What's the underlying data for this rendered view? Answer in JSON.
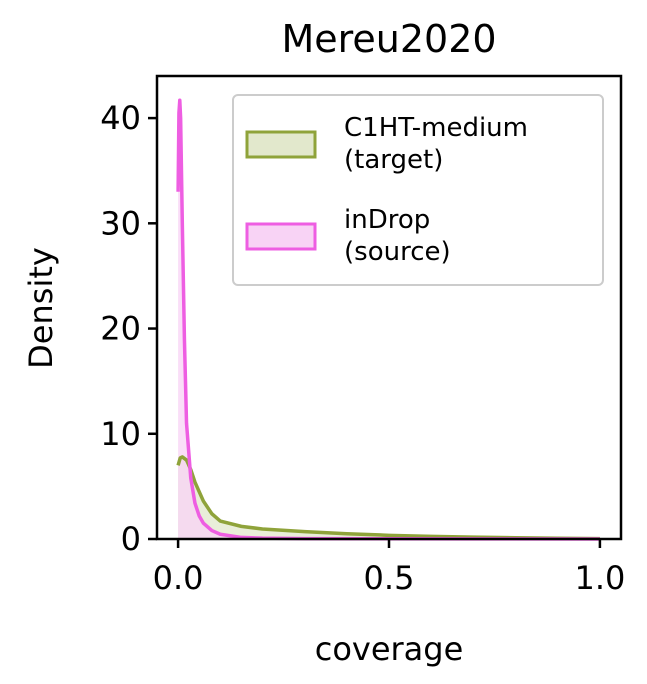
{
  "chart_data": {
    "type": "area",
    "title": "Mereu2020",
    "xlabel": "coverage",
    "ylabel": "Density",
    "xlim": [
      -0.05,
      1.05
    ],
    "ylim": [
      0,
      44
    ],
    "x_ticks": [
      0.0,
      0.5,
      1.0
    ],
    "x_tick_labels": [
      "0.0",
      "0.5",
      "1.0"
    ],
    "y_ticks": [
      0,
      10,
      20,
      30,
      40
    ],
    "y_tick_labels": [
      "0",
      "10",
      "20",
      "30",
      "40"
    ],
    "grid": false,
    "legend_position": "top-right",
    "series": [
      {
        "name": "C1HT-medium (target)",
        "legend_lines": [
          "C1HT-medium",
          "(target)"
        ],
        "color": "#8fa33a",
        "fill": "#e2e8cc",
        "points": [
          [
            0.0,
            0
          ],
          [
            0.0,
            7.0
          ],
          [
            0.005,
            7.7
          ],
          [
            0.01,
            7.8
          ],
          [
            0.02,
            7.5
          ],
          [
            0.03,
            6.6
          ],
          [
            0.04,
            5.4
          ],
          [
            0.06,
            3.6
          ],
          [
            0.08,
            2.4
          ],
          [
            0.1,
            1.7
          ],
          [
            0.15,
            1.2
          ],
          [
            0.2,
            0.95
          ],
          [
            0.3,
            0.7
          ],
          [
            0.4,
            0.5
          ],
          [
            0.5,
            0.35
          ],
          [
            0.6,
            0.25
          ],
          [
            0.7,
            0.18
          ],
          [
            0.8,
            0.12
          ],
          [
            0.9,
            0.07
          ],
          [
            1.0,
            0.03
          ],
          [
            1.0,
            0
          ]
        ]
      },
      {
        "name": "inDrop (source)",
        "legend_lines": [
          "inDrop",
          "(source)"
        ],
        "color": "#ee5ee2",
        "fill": "#f8d3f5",
        "points": [
          [
            0.0,
            0
          ],
          [
            0.0,
            33.0
          ],
          [
            0.002,
            40.5
          ],
          [
            0.004,
            41.7
          ],
          [
            0.006,
            40.0
          ],
          [
            0.01,
            30.0
          ],
          [
            0.015,
            19.0
          ],
          [
            0.02,
            11.0
          ],
          [
            0.03,
            5.8
          ],
          [
            0.04,
            3.4
          ],
          [
            0.05,
            2.2
          ],
          [
            0.06,
            1.5
          ],
          [
            0.08,
            0.8
          ],
          [
            0.1,
            0.45
          ],
          [
            0.15,
            0.15
          ],
          [
            0.2,
            0.08
          ],
          [
            0.3,
            0.04
          ],
          [
            0.5,
            0.02
          ],
          [
            0.7,
            0.01
          ],
          [
            1.0,
            0.0
          ],
          [
            1.0,
            0
          ]
        ]
      }
    ]
  }
}
